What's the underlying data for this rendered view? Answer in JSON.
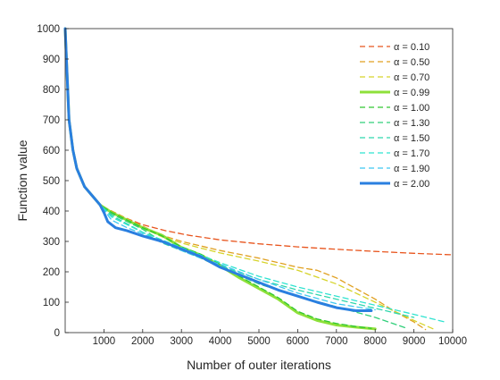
{
  "chart_data": {
    "type": "line",
    "title": "",
    "xlabel": "Number of outer iterations",
    "ylabel": "Function value",
    "xlim": [
      0,
      10000
    ],
    "ylim": [
      0,
      1000
    ],
    "xticks": [
      1000,
      2000,
      3000,
      4000,
      5000,
      6000,
      7000,
      8000,
      9000,
      10000
    ],
    "xtick_labels": [
      "1000",
      "2000",
      "3000",
      "4000",
      "5000",
      "6000",
      "7000",
      "8000",
      "9000",
      "10000"
    ],
    "yticks": [
      0,
      100,
      200,
      300,
      400,
      500,
      600,
      700,
      800,
      900,
      1000
    ],
    "ytick_labels": [
      "0",
      "100",
      "200",
      "300",
      "400",
      "500",
      "600",
      "700",
      "800",
      "900",
      "1000"
    ],
    "grid": false,
    "legend_position": "top-right",
    "series": [
      {
        "name": "α = 0.10",
        "color": "#e8561f",
        "style": "dashed",
        "width": "thin",
        "x": [
          0,
          40,
          100,
          200,
          300,
          500,
          700,
          900,
          1200,
          1600,
          2000,
          2600,
          3200,
          4000,
          5000,
          6000,
          7000,
          8000,
          9000,
          10000
        ],
        "y": [
          1000,
          880,
          700,
          600,
          540,
          480,
          450,
          420,
          395,
          375,
          355,
          335,
          320,
          305,
          292,
          282,
          274,
          267,
          261,
          256
        ]
      },
      {
        "name": "α = 0.50",
        "color": "#e0a020",
        "style": "dashed",
        "width": "thin",
        "x": [
          0,
          40,
          100,
          200,
          300,
          500,
          700,
          900,
          1200,
          1600,
          2000,
          2500,
          3000,
          3500,
          4000,
          5000,
          6000,
          6500,
          7000,
          8000,
          8500,
          9000,
          9300
        ],
        "y": [
          1000,
          880,
          700,
          600,
          540,
          480,
          450,
          420,
          400,
          375,
          350,
          320,
          300,
          285,
          270,
          245,
          215,
          205,
          180,
          110,
          70,
          35,
          10
        ]
      },
      {
        "name": "α = 0.70",
        "color": "#d6d42a",
        "style": "dashed",
        "width": "thin",
        "x": [
          0,
          40,
          100,
          200,
          300,
          500,
          700,
          900,
          1200,
          1600,
          2000,
          2500,
          3000,
          3500,
          4000,
          5000,
          6000,
          7000,
          8000,
          9000,
          9500
        ],
        "y": [
          1000,
          880,
          700,
          600,
          540,
          480,
          450,
          420,
          395,
          370,
          345,
          315,
          295,
          278,
          262,
          235,
          205,
          160,
          100,
          40,
          12
        ]
      },
      {
        "name": "α = 0.99",
        "color": "#8ee03a",
        "style": "solid",
        "width": "thick",
        "x": [
          0,
          40,
          100,
          200,
          300,
          500,
          700,
          900,
          1200,
          1600,
          2000,
          2500,
          3000,
          3500,
          4000,
          4500,
          5000,
          5500,
          6000,
          6500,
          7000,
          7500,
          8000
        ],
        "y": [
          1000,
          880,
          700,
          600,
          540,
          480,
          450,
          420,
          395,
          370,
          345,
          320,
          280,
          255,
          220,
          180,
          145,
          110,
          65,
          40,
          25,
          18,
          12
        ]
      },
      {
        "name": "α = 1.00",
        "color": "#30c830",
        "style": "dashed",
        "width": "thin",
        "x": [
          0,
          40,
          100,
          200,
          300,
          500,
          700,
          900,
          1200,
          1600,
          2000,
          2500,
          3000,
          3500,
          4000,
          4500,
          5000,
          5500,
          6000,
          6500,
          7000,
          7500,
          7900
        ],
        "y": [
          1000,
          880,
          700,
          600,
          540,
          480,
          450,
          420,
          395,
          370,
          345,
          318,
          282,
          258,
          225,
          185,
          150,
          115,
          70,
          45,
          30,
          20,
          14
        ]
      },
      {
        "name": "α = 1.30",
        "color": "#30cf7a",
        "style": "dashed",
        "width": "thin",
        "x": [
          0,
          40,
          100,
          200,
          300,
          500,
          700,
          900,
          1200,
          1600,
          2000,
          2500,
          3000,
          3500,
          4000,
          5000,
          6000,
          7000,
          8000,
          8800
        ],
        "y": [
          1000,
          880,
          700,
          600,
          540,
          480,
          450,
          420,
          390,
          365,
          340,
          300,
          275,
          245,
          215,
          160,
          120,
          85,
          50,
          15
        ]
      },
      {
        "name": "α = 1.50",
        "color": "#2fd6ad",
        "style": "dashed",
        "width": "thin",
        "x": [
          0,
          40,
          100,
          200,
          300,
          500,
          700,
          900,
          1200,
          1600,
          2000,
          2500,
          3000,
          3500,
          4000,
          5000,
          6000,
          7000,
          8000,
          9000
        ],
        "y": [
          1000,
          880,
          700,
          600,
          540,
          480,
          450,
          420,
          385,
          358,
          330,
          295,
          270,
          245,
          220,
          175,
          140,
          110,
          80,
          50
        ]
      },
      {
        "name": "α = 1.70",
        "color": "#2fe3d0",
        "style": "dashed",
        "width": "thin",
        "x": [
          0,
          40,
          100,
          200,
          300,
          500,
          700,
          900,
          1200,
          1600,
          2000,
          2500,
          3000,
          3500,
          4000,
          5000,
          6000,
          7000,
          8000,
          9000,
          9800
        ],
        "y": [
          1000,
          880,
          700,
          600,
          540,
          480,
          450,
          420,
          380,
          355,
          330,
          305,
          280,
          255,
          230,
          185,
          150,
          120,
          90,
          60,
          35
        ]
      },
      {
        "name": "α = 1.90",
        "color": "#3ec8f0",
        "style": "dashed",
        "width": "thin",
        "x": [
          0,
          40,
          100,
          200,
          300,
          500,
          700,
          900,
          1200,
          1600,
          2000,
          2500,
          3000,
          3500,
          4000,
          5000,
          6000,
          7000,
          8000
        ],
        "y": [
          1000,
          880,
          700,
          600,
          540,
          480,
          450,
          420,
          370,
          345,
          325,
          300,
          270,
          245,
          225,
          175,
          130,
          95,
          75
        ]
      },
      {
        "name": "α = 2.00",
        "color": "#2a7fe0",
        "style": "solid",
        "width": "thick",
        "x": [
          0,
          40,
          100,
          200,
          300,
          500,
          700,
          900,
          1000,
          1100,
          1300,
          1600,
          2000,
          2500,
          3000,
          3500,
          4000,
          4500,
          5000,
          5500,
          6000,
          6500,
          7000,
          7500,
          7900
        ],
        "y": [
          1000,
          880,
          700,
          600,
          540,
          480,
          450,
          420,
          395,
          365,
          345,
          335,
          318,
          300,
          275,
          250,
          215,
          190,
          165,
          140,
          120,
          100,
          82,
          72,
          72
        ]
      }
    ]
  }
}
